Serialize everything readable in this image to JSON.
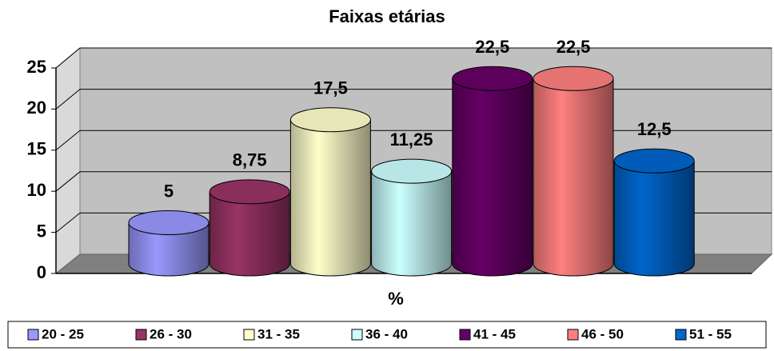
{
  "chart_data": {
    "type": "bar",
    "title": "Faixas etárias",
    "x_label": "%",
    "series": [
      {
        "name": "20 - 25",
        "color": "#9999ff",
        "values": [
          5
        ]
      },
      {
        "name": "26 - 30",
        "color": "#993366",
        "values": [
          8.75
        ],
        "value_labels": [
          "8,75"
        ]
      },
      {
        "name": "31 - 35",
        "color": "#ffffcc",
        "values": [
          17.5
        ],
        "value_labels": [
          "17,5"
        ]
      },
      {
        "name": "36 - 40",
        "color": "#ccffff",
        "values": [
          11.25
        ],
        "value_labels": [
          "11,25"
        ]
      },
      {
        "name": "41 - 45",
        "color": "#660066",
        "values": [
          22.5
        ],
        "value_labels": [
          "22,5"
        ]
      },
      {
        "name": "46 - 50",
        "color": "#ff8080",
        "values": [
          22.5
        ],
        "value_labels": [
          "22,5"
        ]
      },
      {
        "name": "51 - 55",
        "color": "#0066cc",
        "values": [
          12.5
        ],
        "value_labels": [
          "12,5"
        ]
      }
    ],
    "ylim": [
      0,
      25
    ],
    "yticks": [
      0,
      5,
      10,
      15,
      20,
      25
    ],
    "grid": true,
    "legend": "bottom"
  }
}
